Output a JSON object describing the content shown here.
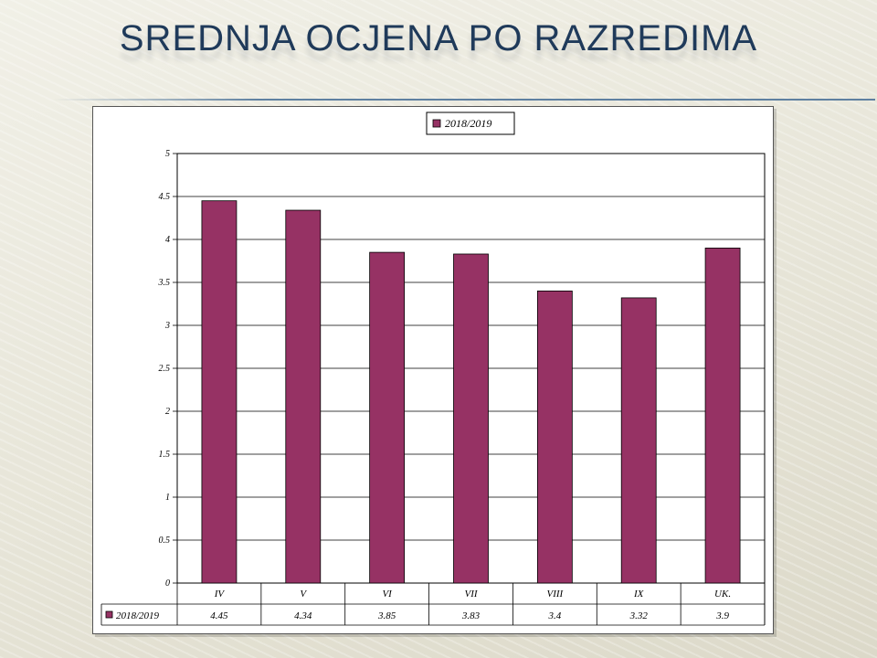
{
  "slide": {
    "title": "SREDNJA OCJENA PO RAZREDIMA"
  },
  "colors": {
    "bar_fill": "#963264",
    "bar_stroke": "#000000",
    "title_color": "#1f3a5a"
  },
  "chart_data": {
    "type": "bar",
    "categories": [
      "IV",
      "V",
      "VI",
      "VII",
      "VIII",
      "IX",
      "UK."
    ],
    "series": [
      {
        "name": "2018/2019",
        "values": [
          4.45,
          4.34,
          3.85,
          3.83,
          3.4,
          3.32,
          3.9
        ]
      }
    ],
    "ylim": [
      0,
      5
    ],
    "yticks": [
      "0",
      "0.5",
      "1",
      "1.5",
      "2",
      "2.5",
      "3",
      "3.5",
      "4",
      "4.5",
      "5"
    ],
    "grid": true,
    "legend": "top-center",
    "data_table": true,
    "table_values": [
      "4.45",
      "4.34",
      "3.85",
      "3.83",
      "3.4",
      "3.32",
      "3.9"
    ]
  }
}
